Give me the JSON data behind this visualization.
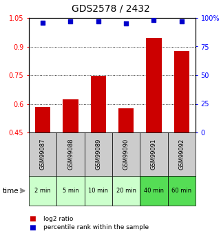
{
  "title": "GDS2578 / 2432",
  "samples": [
    "GSM99087",
    "GSM99088",
    "GSM99089",
    "GSM99090",
    "GSM99091",
    "GSM99092"
  ],
  "times": [
    "2 min",
    "5 min",
    "10 min",
    "20 min",
    "40 min",
    "60 min"
  ],
  "log2_ratios": [
    0.585,
    0.625,
    0.745,
    0.578,
    0.945,
    0.875
  ],
  "percentile_ranks": [
    96,
    97,
    97,
    95,
    98,
    97
  ],
  "ylim_left": [
    0.45,
    1.05
  ],
  "ylim_right": [
    0,
    100
  ],
  "yticks_left": [
    0.45,
    0.6,
    0.75,
    0.9,
    1.05
  ],
  "yticks_right": [
    0,
    25,
    50,
    75,
    100
  ],
  "ytick_labels_left": [
    "0.45",
    "0.6",
    "0.75",
    "0.9",
    "1.05"
  ],
  "ytick_labels_right": [
    "0",
    "25",
    "50",
    "75",
    "100%"
  ],
  "bar_color": "#cc0000",
  "dot_color": "#0000cc",
  "bg_color_sample": "#cccccc",
  "bg_color_time_light": "#ccffcc",
  "bg_color_time_dark": "#55dd55",
  "time_label": "time",
  "legend_bar": "log2 ratio",
  "legend_dot": "percentile rank within the sample",
  "title_fontsize": 10,
  "tick_fontsize": 7,
  "label_fontsize": 7,
  "time_colors": [
    "#ccffcc",
    "#ccffcc",
    "#ccffcc",
    "#ccffcc",
    "#55dd55",
    "#55dd55"
  ]
}
